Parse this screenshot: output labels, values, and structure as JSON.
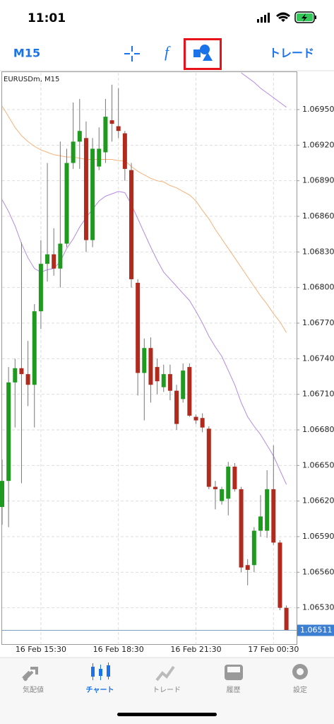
{
  "status_bar": {
    "time": "11:01"
  },
  "toolbar": {
    "timeframe": "M15",
    "function": "f",
    "trade": "トレード"
  },
  "tab_bar": {
    "tabs": [
      "気配値",
      "チャート",
      "トレード",
      "履歴",
      "設定"
    ],
    "active": 1
  },
  "chart_data": {
    "type": "candlestick",
    "title": "EURUSDm, M15",
    "categories": [
      null,
      null,
      null,
      null,
      null,
      null,
      "16 Feb 15:30",
      null,
      null,
      null,
      null,
      null,
      null,
      null,
      null,
      null,
      null,
      null,
      "16 Feb 18:30",
      null,
      null,
      null,
      null,
      null,
      null,
      null,
      null,
      null,
      null,
      null,
      "16 Feb 21:30",
      null,
      null,
      null,
      null,
      null,
      null,
      null,
      null,
      null,
      null,
      null,
      "17 Feb 00:30",
      null,
      null
    ],
    "open": [
      1.06615,
      1.06637,
      1.0672,
      1.06732,
      1.06727,
      1.06718,
      1.0678,
      1.0682,
      1.06828,
      1.06816,
      1.06837,
      1.06905,
      1.06923,
      1.06926,
      1.0684,
      1.06902,
      1.06914,
      1.06941,
      1.06936,
      1.0693,
      1.06899,
      1.06804,
      1.06728,
      1.06749,
      1.06733,
      1.06716,
      1.06727,
      1.06713,
      1.06706,
      1.06733,
      1.06691,
      1.0669,
      1.06681,
      1.06632,
      1.0662,
      1.06622,
      1.06649,
      1.0663,
      1.06566,
      1.06566,
      1.06595,
      1.06595,
      1.0663,
      1.06585,
      1.0653
    ],
    "high": [
      1.06655,
      1.06733,
      1.0674,
      1.06838,
      1.06755,
      1.06786,
      1.0684,
      1.06905,
      1.0685,
      1.06923,
      1.06917,
      1.06956,
      1.06959,
      1.0694,
      1.06926,
      1.06935,
      1.06959,
      1.06971,
      1.06968,
      1.06932,
      1.06905,
      1.06807,
      1.06757,
      1.06758,
      1.0674,
      1.06735,
      1.06735,
      1.06718,
      1.06736,
      1.06736,
      1.06693,
      1.06694,
      1.06683,
      1.06637,
      1.06632,
      1.06653,
      1.06652,
      1.06632,
      1.06571,
      1.06598,
      1.06625,
      1.06646,
      1.06667,
      1.06587,
      1.06532
    ],
    "low": [
      1.066,
      1.06598,
      1.06682,
      1.06635,
      1.067,
      1.06682,
      1.06765,
      1.06805,
      1.0681,
      1.068,
      1.06834,
      1.069,
      1.069,
      1.0683,
      1.06834,
      1.06899,
      1.06905,
      1.06923,
      1.06926,
      1.0689,
      1.068,
      1.06709,
      1.06688,
      1.06703,
      1.0671,
      1.06712,
      1.06705,
      1.0668,
      1.06703,
      1.06691,
      1.06685,
      1.06678,
      1.0663,
      1.06613,
      1.06617,
      1.06608,
      1.06628,
      1.0656,
      1.06549,
      1.0656,
      1.0659,
      1.06589,
      1.06583,
      1.06528,
      1.06511
    ],
    "close": [
      1.06637,
      1.0672,
      1.06732,
      1.06727,
      1.06718,
      1.0678,
      1.0682,
      1.06828,
      1.06816,
      1.06837,
      1.06905,
      1.06923,
      1.06932,
      1.0684,
      1.06917,
      1.06917,
      1.06944,
      1.06938,
      1.06932,
      1.069,
      1.06807,
      1.06728,
      1.06749,
      1.06718,
      1.06721,
      1.06727,
      1.06713,
      1.06685,
      1.0673,
      1.06692,
      1.06688,
      1.06682,
      1.06632,
      1.0663,
      1.0663,
      1.06649,
      1.0663,
      1.06564,
      1.06562,
      1.06595,
      1.06607,
      1.0663,
      1.06585,
      1.0653,
      1.06511
    ],
    "up_color": "#1e9a1e",
    "down_color": "#b02a1e",
    "series": [
      {
        "color": "#b58ae6",
        "values": [
          1.06874,
          1.06864,
          1.06852,
          1.06837,
          1.06825,
          1.06816,
          1.06813,
          1.06815,
          1.06816,
          1.06822,
          1.06833,
          1.06841,
          1.06851,
          1.06859,
          1.06866,
          1.06873,
          1.06877,
          1.06879,
          1.06881,
          1.0688,
          1.0687,
          1.06858,
          1.06846,
          1.06834,
          1.06823,
          1.06813,
          1.06807,
          1.06801,
          1.06795,
          1.06789,
          1.0678,
          1.0677,
          1.06759,
          1.0675,
          1.06742,
          1.0673,
          1.06718,
          1.06703,
          1.06691,
          1.06683,
          1.06676,
          1.06667,
          1.06658,
          1.06646,
          1.06634
        ]
      },
      {
        "color": "#f5b27a",
        "values": [
          1.06953,
          1.06944,
          1.06935,
          1.06928,
          1.06923,
          1.06919,
          1.06916,
          1.06914,
          1.06912,
          1.06911,
          1.0691,
          1.0691,
          1.06909,
          1.06908,
          1.06908,
          1.06908,
          1.06908,
          1.06908,
          1.06907,
          1.06907,
          1.06902,
          1.06898,
          1.06895,
          1.06892,
          1.0689,
          1.06889,
          1.06886,
          1.06884,
          1.06881,
          1.06878,
          1.06873,
          1.06865,
          1.06858,
          1.06849,
          1.06841,
          1.06833,
          1.06825,
          1.06817,
          1.06809,
          1.06801,
          1.06793,
          1.06786,
          1.06778,
          1.06771,
          1.06762
        ]
      },
      {
        "color": "#b58ae6",
        "values": [
          null,
          null,
          null,
          null,
          null,
          null,
          null,
          null,
          null,
          null,
          null,
          null,
          null,
          null,
          null,
          null,
          null,
          null,
          null,
          null,
          null,
          null,
          null,
          null,
          null,
          null,
          null,
          null,
          null,
          null,
          null,
          null,
          null,
          null,
          null,
          null,
          null,
          1.06981,
          1.06977,
          1.06973,
          1.06968,
          1.06964,
          1.0696,
          1.06956,
          1.06952
        ]
      }
    ],
    "ylim": [
      1.065,
      1.06981
    ],
    "yticks": [
      {
        "value": 1.0695,
        "label": "1.06950"
      },
      {
        "value": 1.0692,
        "label": "1.06920"
      },
      {
        "value": 1.0689,
        "label": "1.06890"
      },
      {
        "value": 1.0686,
        "label": "1.06860"
      },
      {
        "value": 1.0683,
        "label": "1.06830"
      },
      {
        "value": 1.068,
        "label": "1.06800"
      },
      {
        "value": 1.0677,
        "label": "1.06770"
      },
      {
        "value": 1.0674,
        "label": "1.06740"
      },
      {
        "value": 1.0671,
        "label": "1.06710"
      },
      {
        "value": 1.0668,
        "label": "1.06680"
      },
      {
        "value": 1.0665,
        "label": "1.06650"
      },
      {
        "value": 1.0662,
        "label": "1.06620"
      },
      {
        "value": 1.0659,
        "label": "1.06590"
      },
      {
        "value": 1.0656,
        "label": "1.06560"
      },
      {
        "value": 1.0653,
        "label": "1.06530"
      }
    ],
    "last_price": 1.06511,
    "grid": true
  }
}
